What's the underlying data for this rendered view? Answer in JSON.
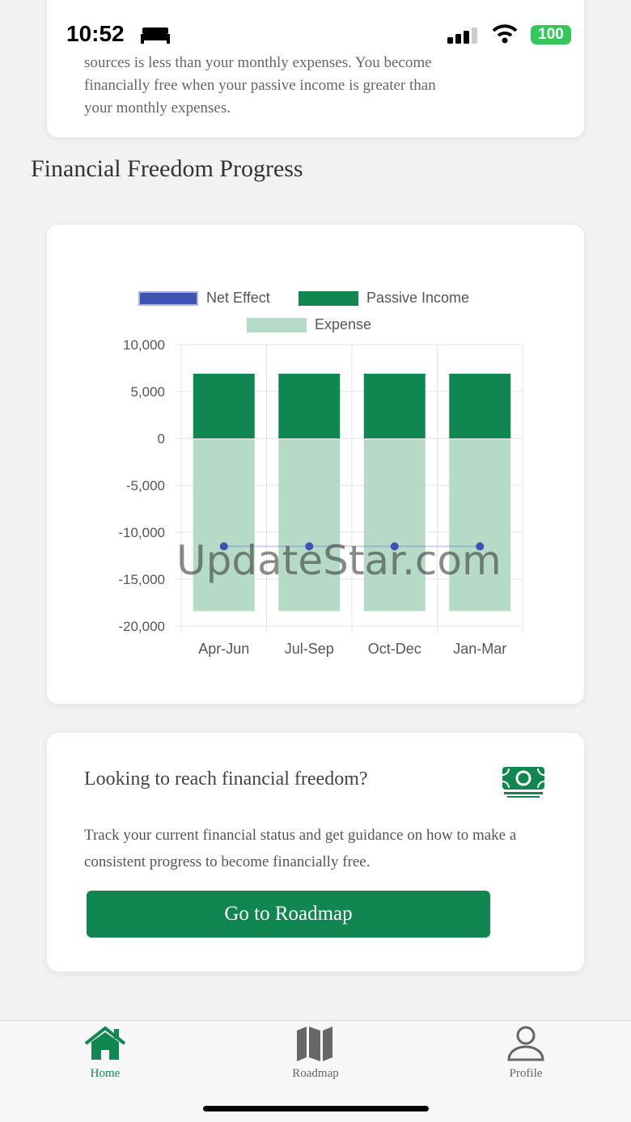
{
  "status_bar": {
    "time": "10:52",
    "battery": "100",
    "icons": [
      "bed-icon",
      "signal-icon",
      "wifi-icon",
      "battery-icon"
    ]
  },
  "intro_card": {
    "lines": [
      "sources is less than your monthly expenses. You become",
      "financially free when your passive income is greater than",
      "your monthly expenses."
    ]
  },
  "section": {
    "title": "Financial Freedom Progress"
  },
  "chart_data": {
    "type": "bar",
    "categories": [
      "Apr-Jun",
      "Jul-Sep",
      "Oct-Dec",
      "Jan-Mar"
    ],
    "series": [
      {
        "name": "Net Effect",
        "type": "line",
        "color": "#3f51b5",
        "values": [
          -11500,
          -11500,
          -11500,
          -11500
        ]
      },
      {
        "name": "Passive Income",
        "type": "bar",
        "color": "#108650",
        "values": [
          6900,
          6900,
          6900,
          6900
        ]
      },
      {
        "name": "Expense",
        "type": "bar",
        "color": "#b5dbc8",
        "values": [
          -18400,
          -18400,
          -18400,
          -18400
        ]
      }
    ],
    "ylim": [
      -20000,
      10000
    ],
    "yticks": [
      "10,000",
      "5,000",
      "0",
      "-5,000",
      "-10,000",
      "-15,000",
      "-20,000"
    ],
    "grid": true,
    "legend": "top"
  },
  "cta": {
    "title": "Looking to reach financial freedom?",
    "icon": "money-bill-icon",
    "text": "Track your current financial status and get guidance on how to make a consistent progress to become financially free.",
    "button": "Go to Roadmap"
  },
  "tabs": [
    {
      "label": "Home",
      "icon": "home-icon",
      "active": true
    },
    {
      "label": "Roadmap",
      "icon": "map-icon"
    },
    {
      "label": "Profile",
      "icon": "user-icon"
    }
  ],
  "watermark": "UpdateStar.com",
  "colors": {
    "accent": "#108650",
    "inactive": "#666666"
  }
}
